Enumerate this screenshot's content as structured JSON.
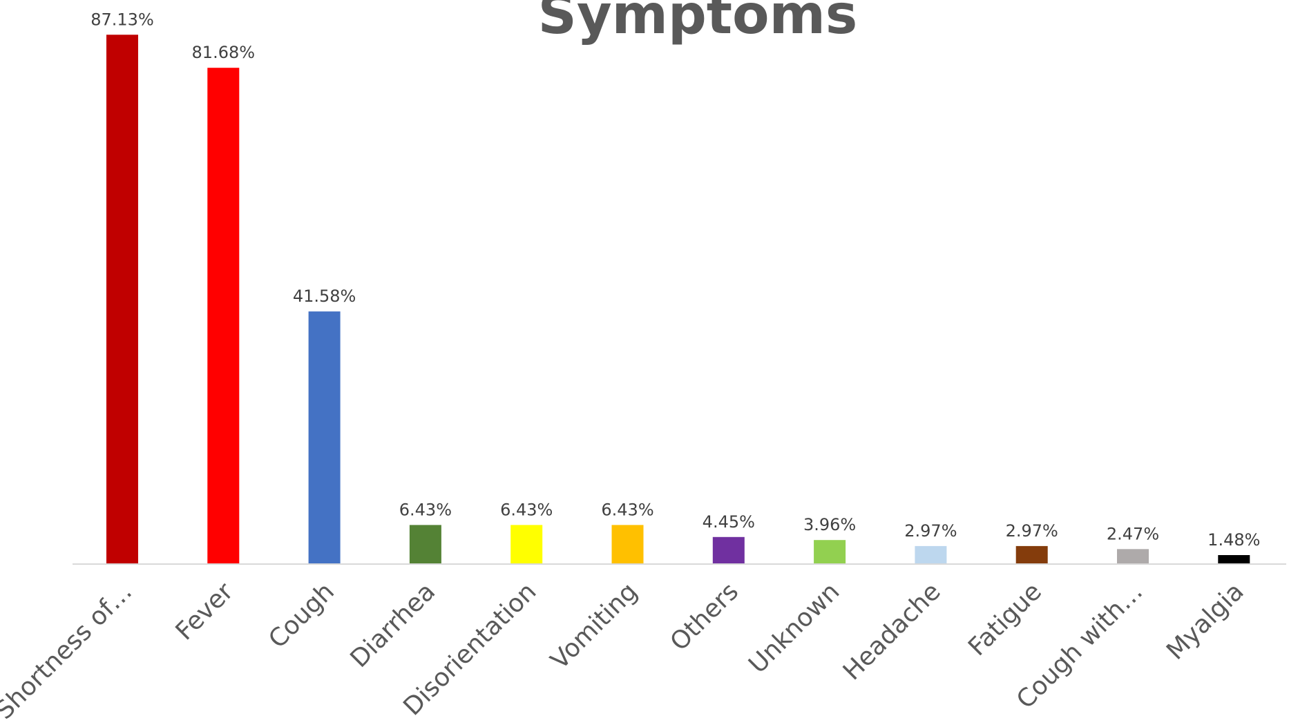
{
  "chart_data": {
    "type": "bar",
    "title": "Symptoms",
    "xlabel": "",
    "ylabel": "",
    "ylim": [
      0,
      90
    ],
    "grid": false,
    "legend": "none",
    "categories": [
      "Shortness of…",
      "Fever",
      "Cough",
      "Diarrhea",
      "Disorientation",
      "Vomiting",
      "Others",
      "Unknown",
      "Headache",
      "Fatigue",
      "Cough with…",
      "Myalgia"
    ],
    "values": [
      87.13,
      81.68,
      41.58,
      6.43,
      6.43,
      6.43,
      4.45,
      3.96,
      2.97,
      2.97,
      2.47,
      1.48
    ],
    "value_labels": [
      "87.13%",
      "81.68%",
      "41.58%",
      "6.43%",
      "6.43%",
      "6.43%",
      "4.45%",
      "3.96%",
      "2.97%",
      "2.97%",
      "2.47%",
      "1.48%"
    ],
    "colors": [
      "#C00000",
      "#FF0000",
      "#4472C4",
      "#548235",
      "#FFFF00",
      "#FFC000",
      "#7030A0",
      "#92D050",
      "#BDD7EE",
      "#843C0C",
      "#AEAAAA",
      "#000000"
    ]
  }
}
